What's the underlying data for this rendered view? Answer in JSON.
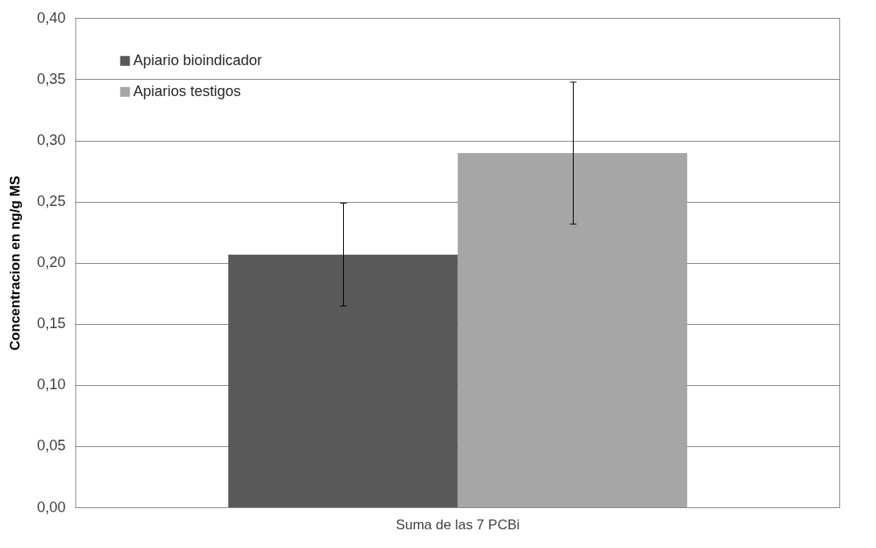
{
  "chart_data": {
    "type": "bar",
    "ylabel": "Concentracion en ng/g MS",
    "categories": [
      "Suma de las 7 PCBi"
    ],
    "series": [
      {
        "name": "Apiario bioindicador",
        "color": "#595959",
        "values": [
          0.207
        ],
        "errors": [
          0.042
        ]
      },
      {
        "name": "Apiarios testigos",
        "color": "#a6a6a6",
        "values": [
          0.29
        ],
        "errors": [
          0.058
        ]
      }
    ],
    "ylim": [
      0,
      0.4
    ],
    "yticks": [
      {
        "value": 0,
        "label": "0,00"
      },
      {
        "value": 0.05,
        "label": "0,05"
      },
      {
        "value": 0.1,
        "label": "0,10"
      },
      {
        "value": 0.15,
        "label": "0,15"
      },
      {
        "value": 0.2,
        "label": "0,20"
      },
      {
        "value": 0.25,
        "label": "0,25"
      },
      {
        "value": 0.3,
        "label": "0,30"
      },
      {
        "value": 0.35,
        "label": "0,35"
      },
      {
        "value": 0.4,
        "label": "0,40"
      }
    ],
    "grid": "y",
    "legend": "top left"
  }
}
